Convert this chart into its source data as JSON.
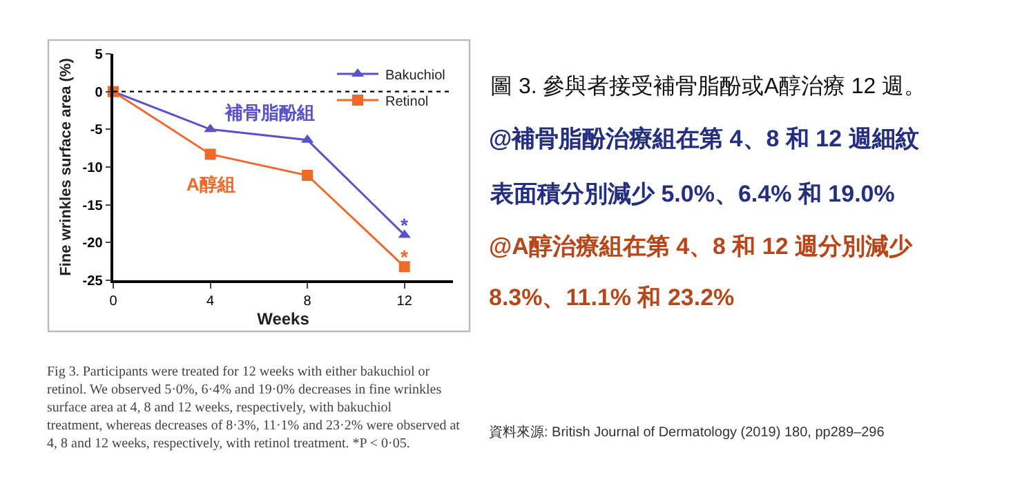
{
  "chart_data": {
    "type": "line",
    "title": "圖 3. 參與者接受補骨脂酚或A醇治療 12 週。",
    "xlabel": "Weeks",
    "ylabel": "Fine wrinkles surface area (%)",
    "x": [
      0,
      4,
      8,
      12
    ],
    "series": [
      {
        "name": "Bakuchiol",
        "color": "#5a52c8",
        "marker": "triangle",
        "values": [
          0,
          -5.0,
          -6.4,
          -19.0
        ]
      },
      {
        "name": "Retinol",
        "color": "#ee6a2c",
        "marker": "square",
        "values": [
          0,
          -8.3,
          -11.1,
          -23.2
        ]
      }
    ],
    "xlim": [
      0,
      14
    ],
    "xticks": [
      0,
      4,
      8,
      12
    ],
    "ylim": [
      -25,
      5
    ],
    "yticks": [
      -25,
      -20,
      -15,
      -10,
      -5,
      0,
      5
    ],
    "ref_lines": [
      {
        "axis": "y",
        "value": 0,
        "line_style": "dotted",
        "color": "#000000"
      }
    ],
    "legend": "top right",
    "line_style": "solid",
    "annotations": [
      "補骨脂酚組",
      "A醇組",
      {
        "text": "*",
        "x": 12,
        "y": -17.6
      },
      {
        "text": "*",
        "x": 12,
        "y": -21.8
      },
      "Fig 3. Participants were treated for 12 weeks with either bakuchiol or retinol. We observed 5·0%, 6·4% and 19·0% decreases in fine wrinkles surface area at 4, 8 and 12 weeks, respectively, with bakuchiol treatment, whereas decreases of 8·3%, 11·1% and 23·2% were observed at 4, 8 and 12 weeks, respectively, with retinol treatment. *P < 0·05.",
      "@補骨脂酚治療組在第 4、8 和 12 週細紋",
      "表面積分別減少 5.0%、6.4% 和 19.0%",
      "@A醇治療組在第 4、8 和 12 週分別減少",
      "8.3%、11.1% 和 23.2%",
      "資料來源: British Journal of Dermatology (2019) 180, pp289–296"
    ]
  }
}
